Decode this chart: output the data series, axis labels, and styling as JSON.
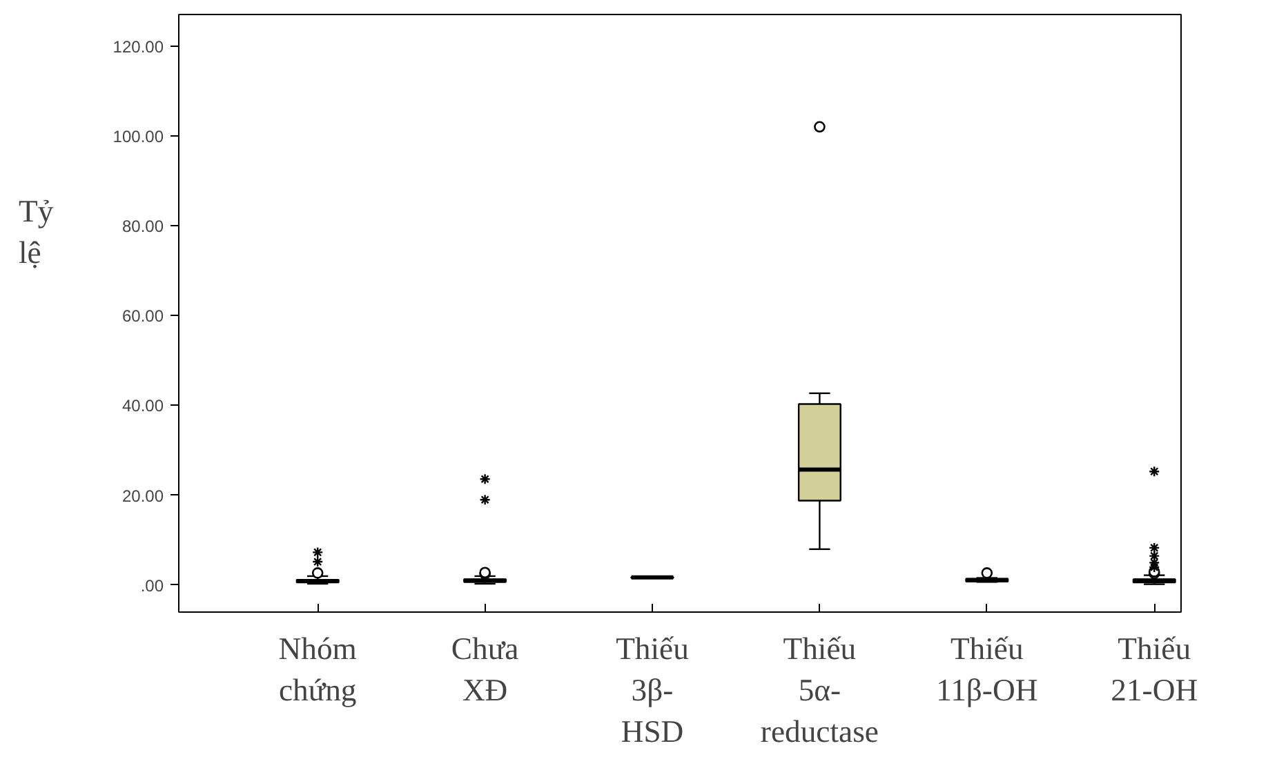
{
  "chart_data": {
    "type": "box",
    "ylabel": "Tỷ\nlệ",
    "categories": [
      "Nhóm\nchứng",
      "Chưa\nXĐ",
      "Thiếu\n3β-\nHSD",
      "Thiếu\n5α-\nreductase",
      "Thiếu\n11β-OH",
      "Thiếu\n21-OH"
    ],
    "color": "#d3cf98",
    "boxes": [
      {
        "low": 0.3,
        "q1": 0.6,
        "median": 0.9,
        "q3": 1.2,
        "high": 2.0,
        "outliers": [
          2.7,
          5.2,
          7.3
        ]
      },
      {
        "low": 0.3,
        "q1": 0.7,
        "median": 1.0,
        "q3": 1.3,
        "high": 2.0,
        "outliers": [
          2.5,
          2.8,
          19.0,
          23.6
        ]
      },
      {
        "low": 1.6,
        "q1": 1.6,
        "median": 1.7,
        "q3": 1.8,
        "high": 1.8
      },
      {
        "low": 8.0,
        "q1": 18.8,
        "median": 25.7,
        "q3": 40.3,
        "high": 42.7,
        "outliers": [
          102
        ]
      },
      {
        "low": 0.7,
        "q1": 0.8,
        "median": 1.1,
        "q3": 1.4,
        "high": 1.6,
        "outliers": [
          2.7
        ]
      },
      {
        "low": 0.2,
        "q1": 0.6,
        "median": 1.0,
        "q3": 1.3,
        "high": 2.2,
        "outliers": [
          2.6,
          3.0,
          4.0,
          5.0,
          6.5,
          8.3,
          25.3
        ]
      }
    ],
    "ylim": [
      -6,
      127
    ],
    "yticks": [
      {
        "value": 0,
        "label": ".00"
      },
      {
        "value": 20,
        "label": "20.00"
      },
      {
        "value": 40,
        "label": "40.00"
      },
      {
        "value": 60,
        "label": "60.00"
      },
      {
        "value": 80,
        "label": "80.00"
      },
      {
        "value": 100,
        "label": "100.00"
      },
      {
        "value": 120,
        "label": "120.00"
      }
    ],
    "grid": false
  }
}
